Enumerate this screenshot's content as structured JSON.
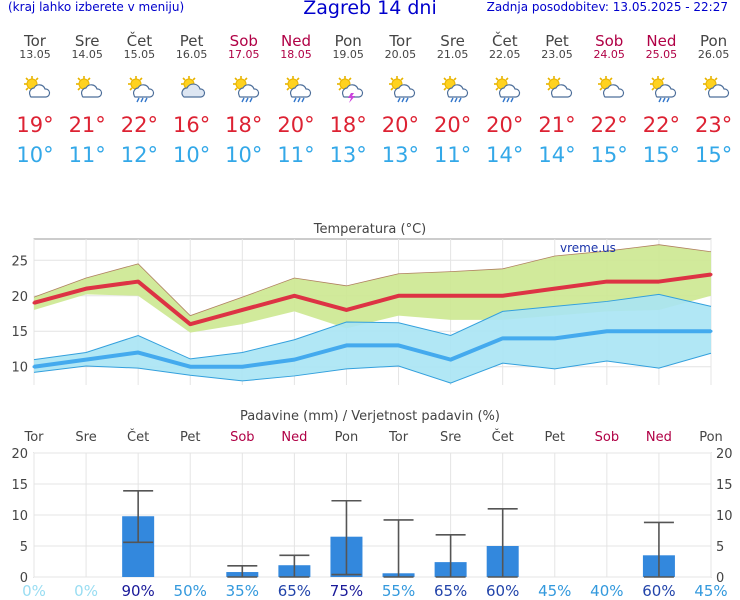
{
  "header": {
    "left": "(kraj lahko izberete v meniju)",
    "title": "Zagreb 14 dni",
    "right": "Zadnja posodobitev: 13.05.2025 - 22:27"
  },
  "days": [
    {
      "name": "Tor",
      "date": "13.05",
      "weekend": false,
      "icon": "sun-cloud-icon",
      "tmax": "19°",
      "tmin": "10°"
    },
    {
      "name": "Sre",
      "date": "14.05",
      "weekend": false,
      "icon": "sun-cloud-icon",
      "tmax": "21°",
      "tmin": "11°"
    },
    {
      "name": "Čet",
      "date": "15.05",
      "weekend": false,
      "icon": "sun-cloud-rain-icon",
      "tmax": "22°",
      "tmin": "12°"
    },
    {
      "name": "Pet",
      "date": "16.05",
      "weekend": false,
      "icon": "cloudy-sun-icon",
      "tmax": "16°",
      "tmin": "10°"
    },
    {
      "name": "Sob",
      "date": "17.05",
      "weekend": true,
      "icon": "sun-cloud-rain-icon",
      "tmax": "18°",
      "tmin": "10°"
    },
    {
      "name": "Ned",
      "date": "18.05",
      "weekend": true,
      "icon": "sun-cloud-rain-icon",
      "tmax": "20°",
      "tmin": "11°"
    },
    {
      "name": "Pon",
      "date": "19.05",
      "weekend": false,
      "icon": "sun-cloud-storm-icon",
      "tmax": "18°",
      "tmin": "13°"
    },
    {
      "name": "Tor",
      "date": "20.05",
      "weekend": false,
      "icon": "sun-cloud-rain-icon",
      "tmax": "20°",
      "tmin": "13°"
    },
    {
      "name": "Sre",
      "date": "21.05",
      "weekend": false,
      "icon": "sun-cloud-rain-icon",
      "tmax": "20°",
      "tmin": "11°"
    },
    {
      "name": "Čet",
      "date": "22.05",
      "weekend": false,
      "icon": "sun-cloud-rain-icon",
      "tmax": "20°",
      "tmin": "14°"
    },
    {
      "name": "Pet",
      "date": "23.05",
      "weekend": false,
      "icon": "sun-cloud-icon",
      "tmax": "21°",
      "tmin": "14°"
    },
    {
      "name": "Sob",
      "date": "24.05",
      "weekend": true,
      "icon": "sun-cloud-icon",
      "tmax": "22°",
      "tmin": "15°"
    },
    {
      "name": "Ned",
      "date": "25.05",
      "weekend": true,
      "icon": "sun-cloud-rain-icon",
      "tmax": "22°",
      "tmin": "15°"
    },
    {
      "name": "Pon",
      "date": "26.05",
      "weekend": false,
      "icon": "sun-cloud-icon",
      "tmax": "23°",
      "tmin": "15°"
    }
  ],
  "chart_data": [
    {
      "type": "line",
      "title": "Temperatura (°C)",
      "watermark": "vreme.us",
      "ylim": [
        7,
        28
      ],
      "yticks": [
        10,
        15,
        20,
        25
      ],
      "grid": true,
      "series": [
        {
          "name": "max",
          "values": [
            19,
            21,
            22,
            16,
            18,
            20,
            18,
            20,
            20,
            20,
            21,
            22,
            22,
            23
          ],
          "color": "#dd3344"
        },
        {
          "name": "min",
          "values": [
            10,
            11,
            12,
            10,
            10,
            11,
            13,
            13,
            11,
            14,
            14,
            15,
            15,
            15
          ],
          "color": "#44aaee"
        }
      ],
      "max_band_high": [
        19.8,
        22.5,
        24.5,
        17.2,
        19.8,
        22.5,
        21.4,
        23.1,
        23.4,
        23.8,
        25.6,
        26.3,
        27.2,
        26.2
      ],
      "max_band_low": [
        18.0,
        20.2,
        20.0,
        14.8,
        16.0,
        17.8,
        15.4,
        17.2,
        16.6,
        16.6,
        17.2,
        17.8,
        18.0,
        20.0
      ],
      "min_band_high": [
        11.0,
        12.0,
        14.4,
        11.1,
        12.0,
        13.8,
        16.3,
        16.2,
        14.4,
        17.8,
        18.5,
        19.2,
        20.2,
        18.5
      ],
      "min_band_low": [
        9.2,
        10.1,
        9.8,
        8.8,
        8.0,
        8.7,
        9.7,
        10.1,
        7.7,
        10.5,
        9.7,
        10.8,
        9.8,
        11.9
      ],
      "colors": {
        "max_band": "#cce890",
        "min_band": "#a8e4f4",
        "overlap": "#88d28e"
      }
    },
    {
      "type": "bar",
      "title": "Padavine (mm) / Verjetnost padavin (%)",
      "categories": [
        "Tor",
        "Sre",
        "Čet",
        "Pet",
        "Sob",
        "Ned",
        "Pon",
        "Tor",
        "Sre",
        "Čet",
        "Pet",
        "Sob",
        "Ned",
        "Pon"
      ],
      "weekend": [
        false,
        false,
        false,
        false,
        true,
        true,
        false,
        false,
        false,
        false,
        false,
        true,
        true,
        false
      ],
      "values": [
        0,
        0,
        9.8,
        0,
        0.8,
        1.9,
        6.5,
        0.6,
        2.4,
        5.0,
        0,
        0,
        3.5,
        0
      ],
      "err_low": [
        null,
        null,
        5.6,
        null,
        0,
        0,
        0.4,
        0,
        0,
        0,
        null,
        null,
        0,
        null
      ],
      "err_high": [
        null,
        null,
        13.9,
        null,
        1.8,
        3.5,
        12.3,
        9.2,
        6.8,
        11.0,
        null,
        null,
        8.8,
        null
      ],
      "probability": [
        "0%",
        "0%",
        "90%",
        "50%",
        "35%",
        "65%",
        "75%",
        "55%",
        "65%",
        "60%",
        "45%",
        "40%",
        "60%",
        "45%"
      ],
      "ylim": [
        0,
        20
      ],
      "yticks": [
        0,
        5,
        10,
        15,
        20
      ],
      "colors": {
        "bar": "#3388dd",
        "error": "#555555"
      }
    }
  ]
}
